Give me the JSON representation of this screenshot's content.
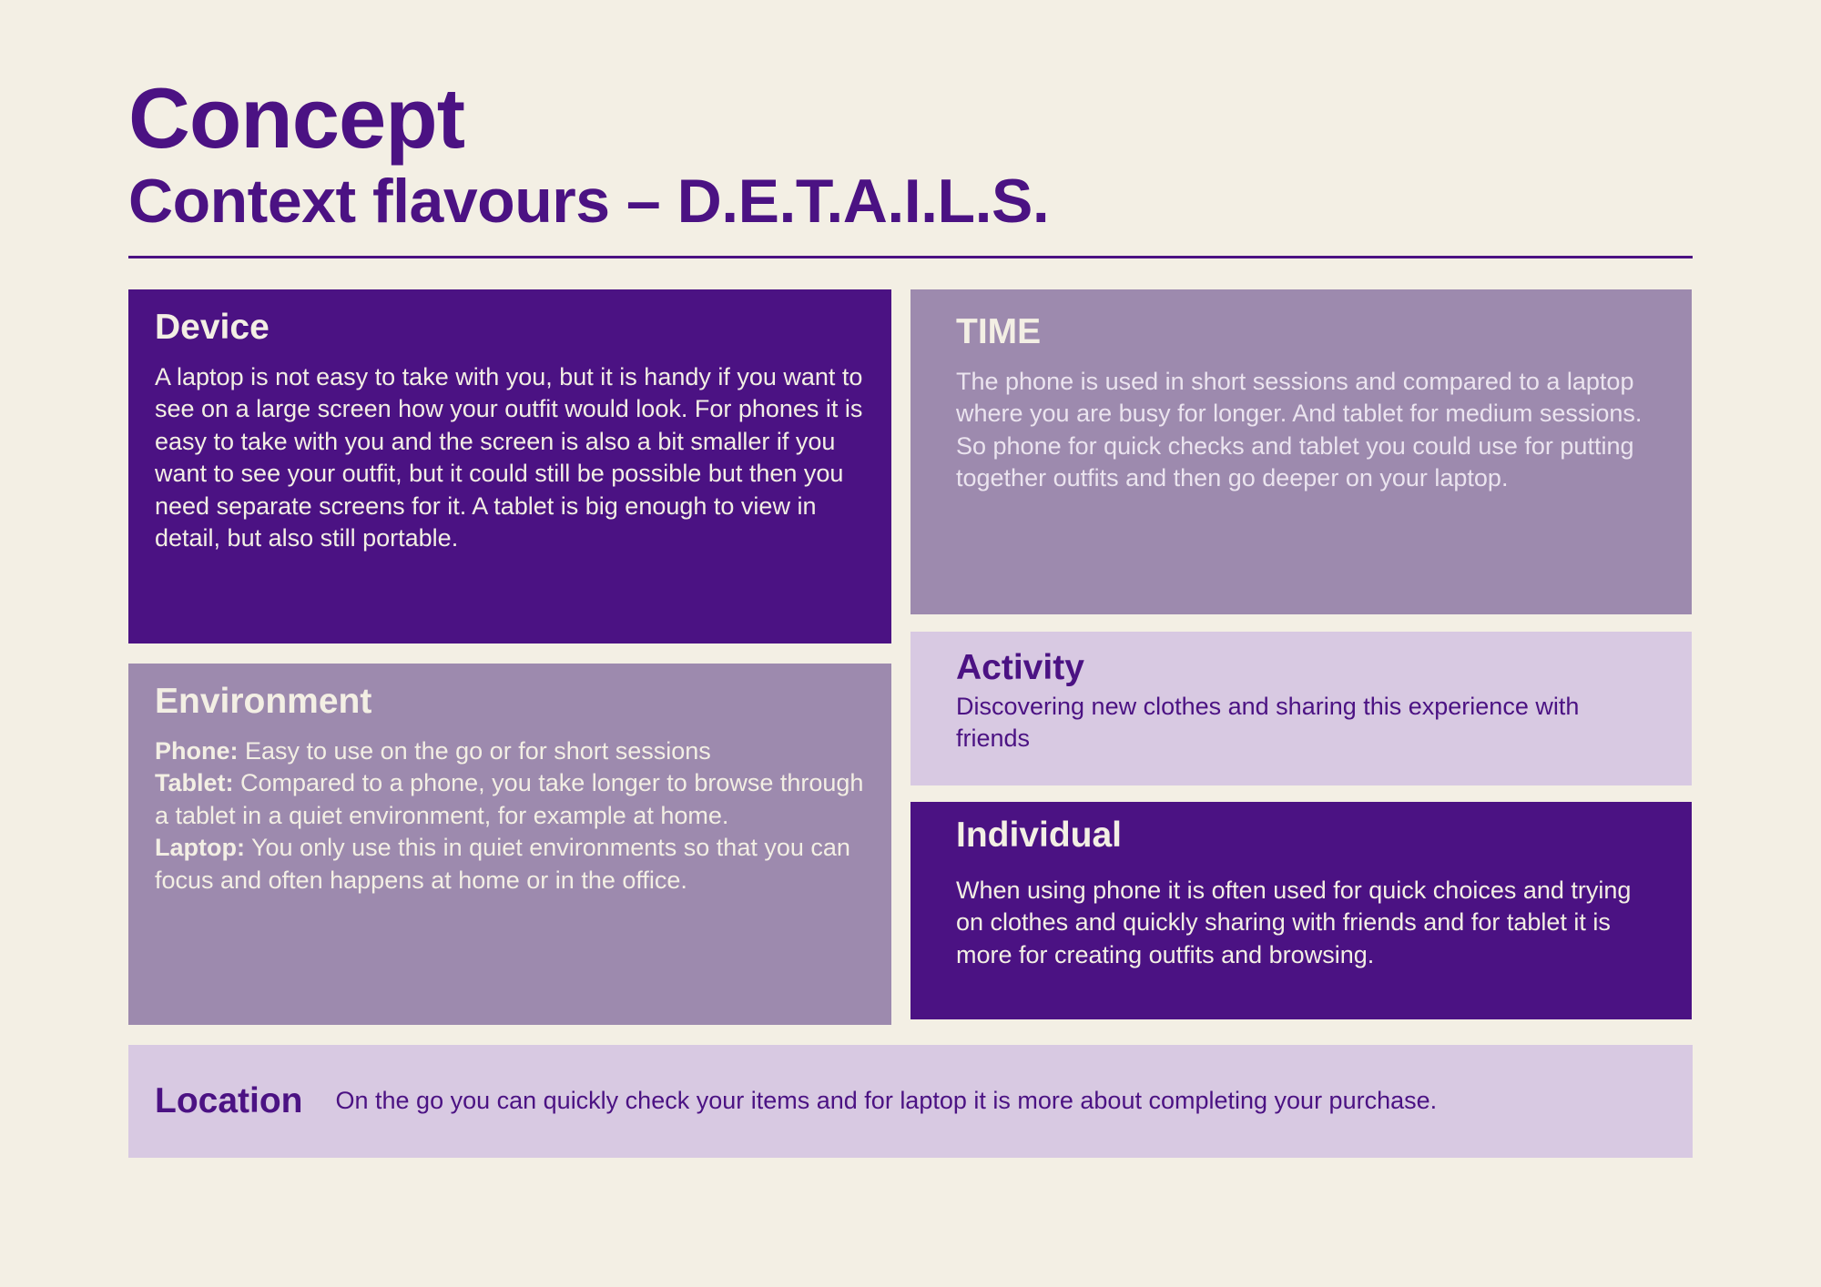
{
  "header": {
    "title": "Concept",
    "subtitle": "Context flavours – D.E.T.A.I.L.S."
  },
  "cards": {
    "device": {
      "title": "Device",
      "text": "A laptop is not easy to take with you, but it is handy if you want to see on a large screen how your outfit would look. For phones it is easy to take with you and the screen is also a bit smaller if you want to see your outfit, but it could still be possible but then you need separate screens for it. A tablet is big enough to view in detail, but also still portable."
    },
    "time": {
      "title": "TIME",
      "line1": "The phone is used in short sessions and compared to a laptop where you are busy for longer. And tablet for medium sessions.",
      "line2": "So phone for quick checks and tablet you could use for putting together outfits and then go deeper on your laptop."
    },
    "environment": {
      "title": "Environment",
      "phone_label": "Phone:",
      "phone_text": " Easy to use on the go or for short sessions",
      "tablet_label": "Tablet:",
      "tablet_text": " Compared to a phone, you take longer to browse through a tablet in a quiet environment, for example at home.",
      "laptop_label": "Laptop:",
      "laptop_text": " You only use this in quiet environments so that you can focus and often happens at home or in the office."
    },
    "activity": {
      "title": "Activity",
      "text": "Discovering new clothes and sharing this experience with friends"
    },
    "individual": {
      "title": "Individual",
      "text": "When using phone it is often used for quick choices and trying on clothes and quickly sharing with friends and for tablet it is more for creating outfits and browsing."
    },
    "location": {
      "title": "Location",
      "text": "On the go you can quickly check your items and for laptop it is more about completing your purchase."
    }
  },
  "colors": {
    "background": "#f3efe4",
    "dark_purple": "#4b1283",
    "mid_purple": "#9d8aae",
    "light_purple": "#d8c9e2"
  }
}
